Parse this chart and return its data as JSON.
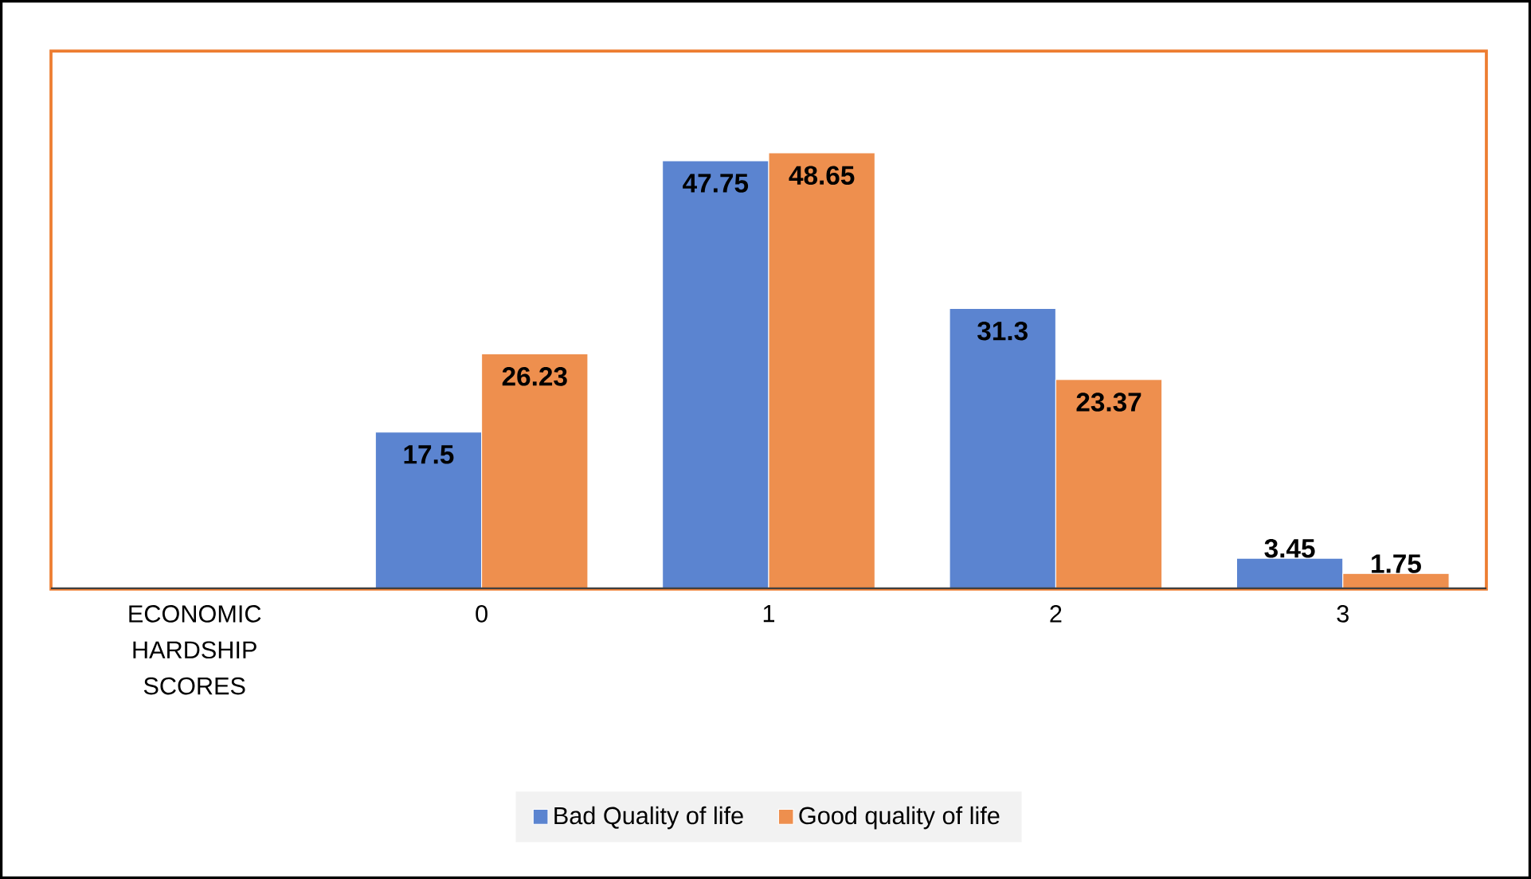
{
  "chart_data": {
    "type": "bar",
    "categories": [
      "ECONOMIC HARDSHIP SCORES",
      "0",
      "1",
      "2",
      "3"
    ],
    "series": [
      {
        "name": "Bad Quality of life",
        "color": "#5b84d0",
        "values": [
          null,
          17.5,
          47.75,
          31.3,
          3.45
        ]
      },
      {
        "name": "Good quality of life",
        "color": "#ee8f4e",
        "values": [
          null,
          26.23,
          48.65,
          23.37,
          1.75
        ]
      }
    ],
    "ylim": [
      0,
      60
    ],
    "legend": "bottom",
    "data_labels": true,
    "tick_labels": "x"
  }
}
